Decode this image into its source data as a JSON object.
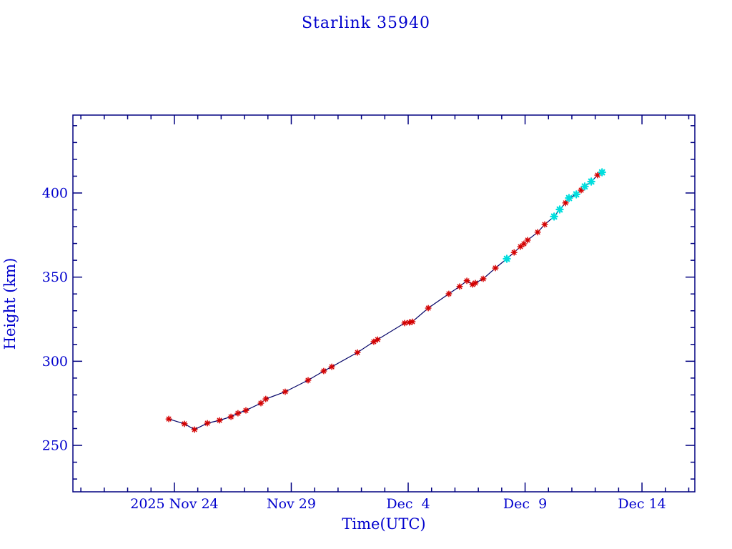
{
  "title": "Starlink 35940",
  "colors": {
    "background": "#ffffff",
    "label_blue": "#0000cd",
    "frame_navy": "#000080",
    "line_navy": "#000066",
    "marker_red": "#d40000",
    "marker_cyan": "#00dede"
  },
  "chart_data": {
    "type": "line",
    "title": "Starlink 35940",
    "xlabel": "Time(UTC)",
    "ylabel": "Height (km)",
    "x_unit": "days since 2025 Nov 24 00:00 UTC",
    "xlim_days": [
      -4.34,
      22.26
    ],
    "ylim_km": [
      222.4,
      446.3
    ],
    "grid": false,
    "legend": null,
    "x_major_ticks": [
      {
        "day": 0,
        "label": "2025 Nov 24"
      },
      {
        "day": 5,
        "label": "Nov 29"
      },
      {
        "day": 10,
        "label": "Dec  4"
      },
      {
        "day": 15,
        "label": "Dec  9"
      },
      {
        "day": 20,
        "label": "Dec 14"
      }
    ],
    "x_minor_step_days": 1,
    "y_major_ticks": [
      250,
      300,
      350,
      400
    ],
    "y_minor_step_km": 10,
    "line_color": "#000066",
    "marker_style": "asterisk",
    "marker_colors": {
      "r": "#d40000",
      "c": "#00dede"
    },
    "points": [
      [
        -0.24,
        265.7,
        "r"
      ],
      [
        0.43,
        262.8,
        "r"
      ],
      [
        0.86,
        259.4,
        "r"
      ],
      [
        1.41,
        263.2,
        "r"
      ],
      [
        1.93,
        264.9,
        "r"
      ],
      [
        2.42,
        267.0,
        "r"
      ],
      [
        2.72,
        269.1,
        "r"
      ],
      [
        3.06,
        270.8,
        "r"
      ],
      [
        3.7,
        275.1,
        "r"
      ],
      [
        3.91,
        277.6,
        "r"
      ],
      [
        4.74,
        281.9,
        "r"
      ],
      [
        5.72,
        288.7,
        "r"
      ],
      [
        6.39,
        294.2,
        "r"
      ],
      [
        6.73,
        296.7,
        "r"
      ],
      [
        7.83,
        305.2,
        "r"
      ],
      [
        8.53,
        311.6,
        "r"
      ],
      [
        8.69,
        312.9,
        "r"
      ],
      [
        9.85,
        322.7,
        "r"
      ],
      [
        10.05,
        323.1,
        "r"
      ],
      [
        10.18,
        323.5,
        "r"
      ],
      [
        10.86,
        331.6,
        "r"
      ],
      [
        11.74,
        340.1,
        "r"
      ],
      [
        12.2,
        344.4,
        "r"
      ],
      [
        12.51,
        347.8,
        "r"
      ],
      [
        12.75,
        345.6,
        "r"
      ],
      [
        12.87,
        346.5,
        "r"
      ],
      [
        13.21,
        349.0,
        "r"
      ],
      [
        13.73,
        355.4,
        "r"
      ],
      [
        14.22,
        360.9,
        "c"
      ],
      [
        14.53,
        364.7,
        "r"
      ],
      [
        14.8,
        368.1,
        "r"
      ],
      [
        14.95,
        369.8,
        "r"
      ],
      [
        15.11,
        372.0,
        "r"
      ],
      [
        15.54,
        376.7,
        "r"
      ],
      [
        15.84,
        381.3,
        "r"
      ],
      [
        16.24,
        386.0,
        "c"
      ],
      [
        16.48,
        390.2,
        "c"
      ],
      [
        16.73,
        394.1,
        "r"
      ],
      [
        16.88,
        397.0,
        "c"
      ],
      [
        17.19,
        399.2,
        "c"
      ],
      [
        17.4,
        401.7,
        "r"
      ],
      [
        17.55,
        403.9,
        "c"
      ],
      [
        17.83,
        406.8,
        "c"
      ],
      [
        18.1,
        410.6,
        "r"
      ],
      [
        18.29,
        412.3,
        "c"
      ]
    ]
  }
}
